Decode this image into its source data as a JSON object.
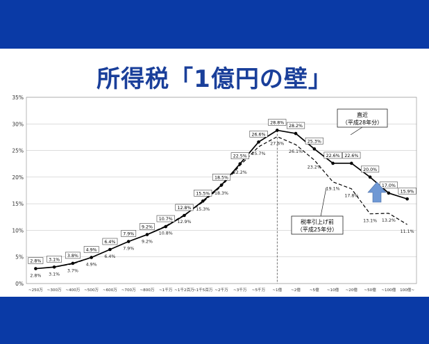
{
  "slide": {
    "title": "所得税「1億円の壁」"
  },
  "colors": {
    "band": "#0a3aa6",
    "title": "#1a3f9a",
    "series_current": "#000000",
    "series_before": "#000000",
    "arrow": "#6f98d4"
  },
  "chart_data": {
    "type": "line",
    "title": "",
    "xlabel": "",
    "ylabel": "",
    "ylim": [
      0,
      35
    ],
    "yticks": [
      "0%",
      "5%",
      "10%",
      "15%",
      "20%",
      "25%",
      "30%",
      "35%"
    ],
    "grid": true,
    "categories": [
      "~250万",
      "~300万",
      "~400万",
      "~500万",
      "~600万",
      "~700万",
      "~800万",
      "~1千万",
      "~1千2百万",
      "~1千5百万",
      "~2千万",
      "~3千万",
      "~5千万",
      "~1億",
      "~2億",
      "~5億",
      "~10億",
      "~20億",
      "~50億",
      "~100億",
      "100億~"
    ],
    "series": [
      {
        "name": "直近（平成28年分）",
        "style": "solid",
        "values": [
          2.8,
          3.1,
          3.8,
          4.9,
          6.4,
          7.9,
          9.2,
          10.7,
          12.8,
          15.5,
          18.5,
          22.5,
          26.6,
          28.8,
          28.2,
          25.3,
          22.6,
          22.6,
          20.0,
          17.0,
          15.9
        ],
        "labels": [
          "2.8%",
          "3.1%",
          "3.8%",
          "4.9%",
          "6.4%",
          "7.9%",
          "9.2%",
          "10.7%",
          "12.8%",
          "15.5%",
          "18.5%",
          "22.5%",
          "26.6%",
          "28.8%",
          "28.2%",
          "25.3%",
          "22.6%",
          "22.6%",
          "20.0%",
          "17.0%",
          "15.9%"
        ]
      },
      {
        "name": "税率引上げ前（平成25年分）",
        "style": "dashed",
        "values": [
          2.8,
          3.1,
          3.7,
          4.9,
          6.4,
          7.9,
          9.2,
          10.8,
          12.9,
          15.3,
          18.3,
          22.2,
          25.7,
          27.6,
          26.1,
          23.2,
          19.1,
          17.8,
          13.1,
          13.2,
          11.1
        ],
        "labels": [
          "2.8%",
          "3.1%",
          "3.7%",
          "4.9%",
          "6.4%",
          "7.9%",
          "9.2%",
          "10.8%",
          "12.9%",
          "15.3%",
          "18.3%",
          "22.2%",
          "25.7%",
          "27.6%",
          "26.1%",
          "23.2%",
          "19.1%",
          "17.8%",
          "13.1%",
          "13.2%",
          "11.1%"
        ]
      }
    ],
    "annotations": {
      "current": [
        "直近",
        "（平成28年分）"
      ],
      "before": [
        "税率引上げ前",
        "（平成25年分）"
      ]
    }
  }
}
